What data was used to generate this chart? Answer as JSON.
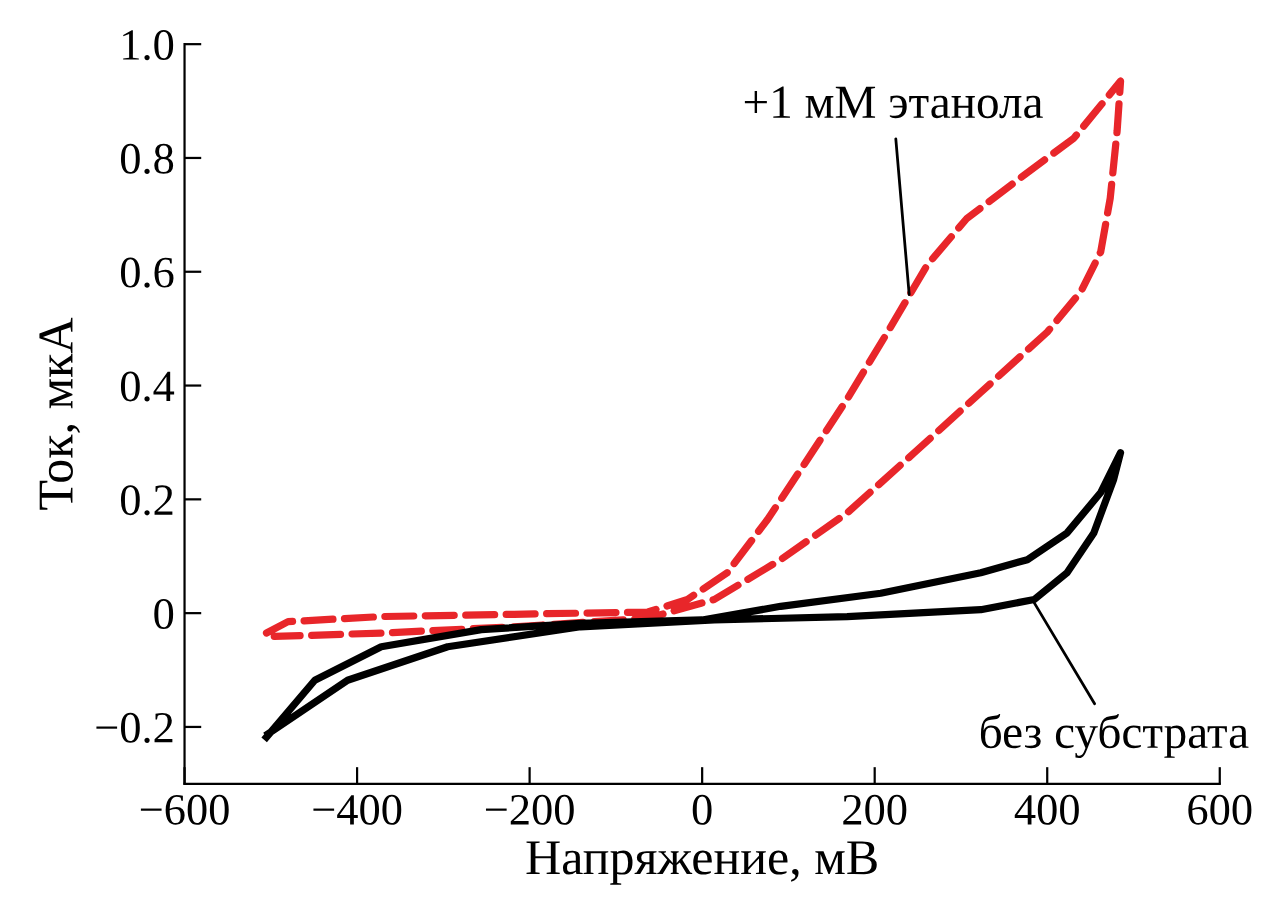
{
  "chart_data": {
    "type": "line",
    "xlabel": "Напряжение, мВ",
    "ylabel": "Ток, мкА",
    "xlim": [
      -600,
      600
    ],
    "xticks": [
      {
        "value": -600,
        "label": "−600"
      },
      {
        "value": -400,
        "label": "−400"
      },
      {
        "value": -200,
        "label": "−200"
      },
      0,
      200,
      400,
      600
    ],
    "ylim": [
      -0.3,
      1.0
    ],
    "yticks": [
      {
        "value": -0.2,
        "label": "−0.2"
      },
      0,
      {
        "value": 0.2,
        "label": "0.2"
      },
      {
        "value": 0.4,
        "label": "0.4"
      },
      {
        "value": 0.6,
        "label": "0.6"
      },
      {
        "value": 0.8,
        "label": "0.8"
      },
      {
        "value": 1.0,
        "label": "1.0"
      }
    ],
    "grid": false,
    "series": [
      {
        "color": "#e8262a",
        "line_style": "dashed",
        "x": [
          -505,
          -480,
          -372,
          -218,
          -63,
          -17,
          29,
          76,
          122,
          168,
          215,
          261,
          307,
          369,
          431,
          485,
          481,
          473,
          462,
          439,
          400,
          323,
          246,
          168,
          91,
          14,
          -63,
          -218,
          -372,
          -496
        ],
        "values": [
          -0.035,
          -0.015,
          -0.006,
          -0.002,
          0.002,
          0.024,
          0.071,
          0.165,
          0.27,
          0.376,
          0.494,
          0.612,
          0.694,
          0.765,
          0.835,
          0.935,
          0.847,
          0.729,
          0.635,
          0.565,
          0.494,
          0.388,
          0.282,
          0.176,
          0.094,
          0.024,
          -0.009,
          -0.024,
          -0.035,
          -0.041
        ]
      },
      {
        "color": "#000000",
        "line_style": "solid",
        "x": [
          -505,
          -449,
          -372,
          -256,
          -141,
          0,
          91,
          207,
          323,
          377,
          423,
          462,
          485,
          477,
          454,
          423,
          385,
          323,
          168,
          14,
          -141,
          -295,
          -411,
          -503
        ],
        "values": [
          -0.218,
          -0.118,
          -0.059,
          -0.029,
          -0.018,
          -0.012,
          0.012,
          0.035,
          0.071,
          0.094,
          0.141,
          0.212,
          0.282,
          0.235,
          0.141,
          0.071,
          0.024,
          0.006,
          -0.006,
          -0.012,
          -0.024,
          -0.059,
          -0.118,
          -0.212
        ]
      }
    ],
    "annotations": [
      {
        "text": "+1 мМ этанола",
        "x": 240,
        "y": 0.56
      },
      {
        "text": "без субстрата",
        "x": 385,
        "y": 0.018
      }
    ]
  }
}
